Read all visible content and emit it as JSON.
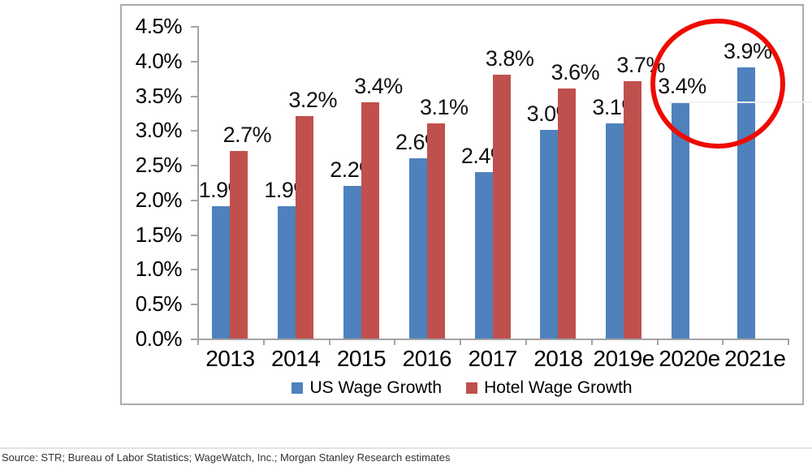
{
  "chart_data": {
    "type": "bar",
    "title": "",
    "categories": [
      "2013",
      "2014",
      "2015",
      "2016",
      "2017",
      "2018",
      "2019e",
      "2020e",
      "2021e"
    ],
    "series": [
      {
        "name": "US Wage Growth",
        "color": "#4f81bd",
        "values": [
          1.9,
          1.9,
          2.2,
          2.6,
          2.4,
          3.0,
          3.1,
          3.4,
          3.9
        ]
      },
      {
        "name": "Hotel Wage Growth",
        "color": "#c0504d",
        "values": [
          2.7,
          3.2,
          3.4,
          3.1,
          3.8,
          3.6,
          3.7,
          null,
          null
        ]
      }
    ],
    "ylim": [
      0,
      4.5
    ],
    "ytick_step": 0.5,
    "ytick_labels": [
      "0.0%",
      "0.5%",
      "1.0%",
      "1.5%",
      "2.0%",
      "2.5%",
      "3.0%",
      "3.5%",
      "4.0%",
      "4.5%"
    ],
    "data_labels": true,
    "data_label_format": "0.0%",
    "grid": false,
    "legend_position": "bottom",
    "annotation": {
      "type": "circle",
      "color": "#ee0b00",
      "around_categories": [
        "2020e",
        "2021e"
      ],
      "note": "red circle highlighting 2020e and 2021e US wage growth bars"
    }
  },
  "source_note": "Source: STR; Bureau of Labor Statistics; WageWatch, Inc.; Morgan Stanley Research estimates"
}
